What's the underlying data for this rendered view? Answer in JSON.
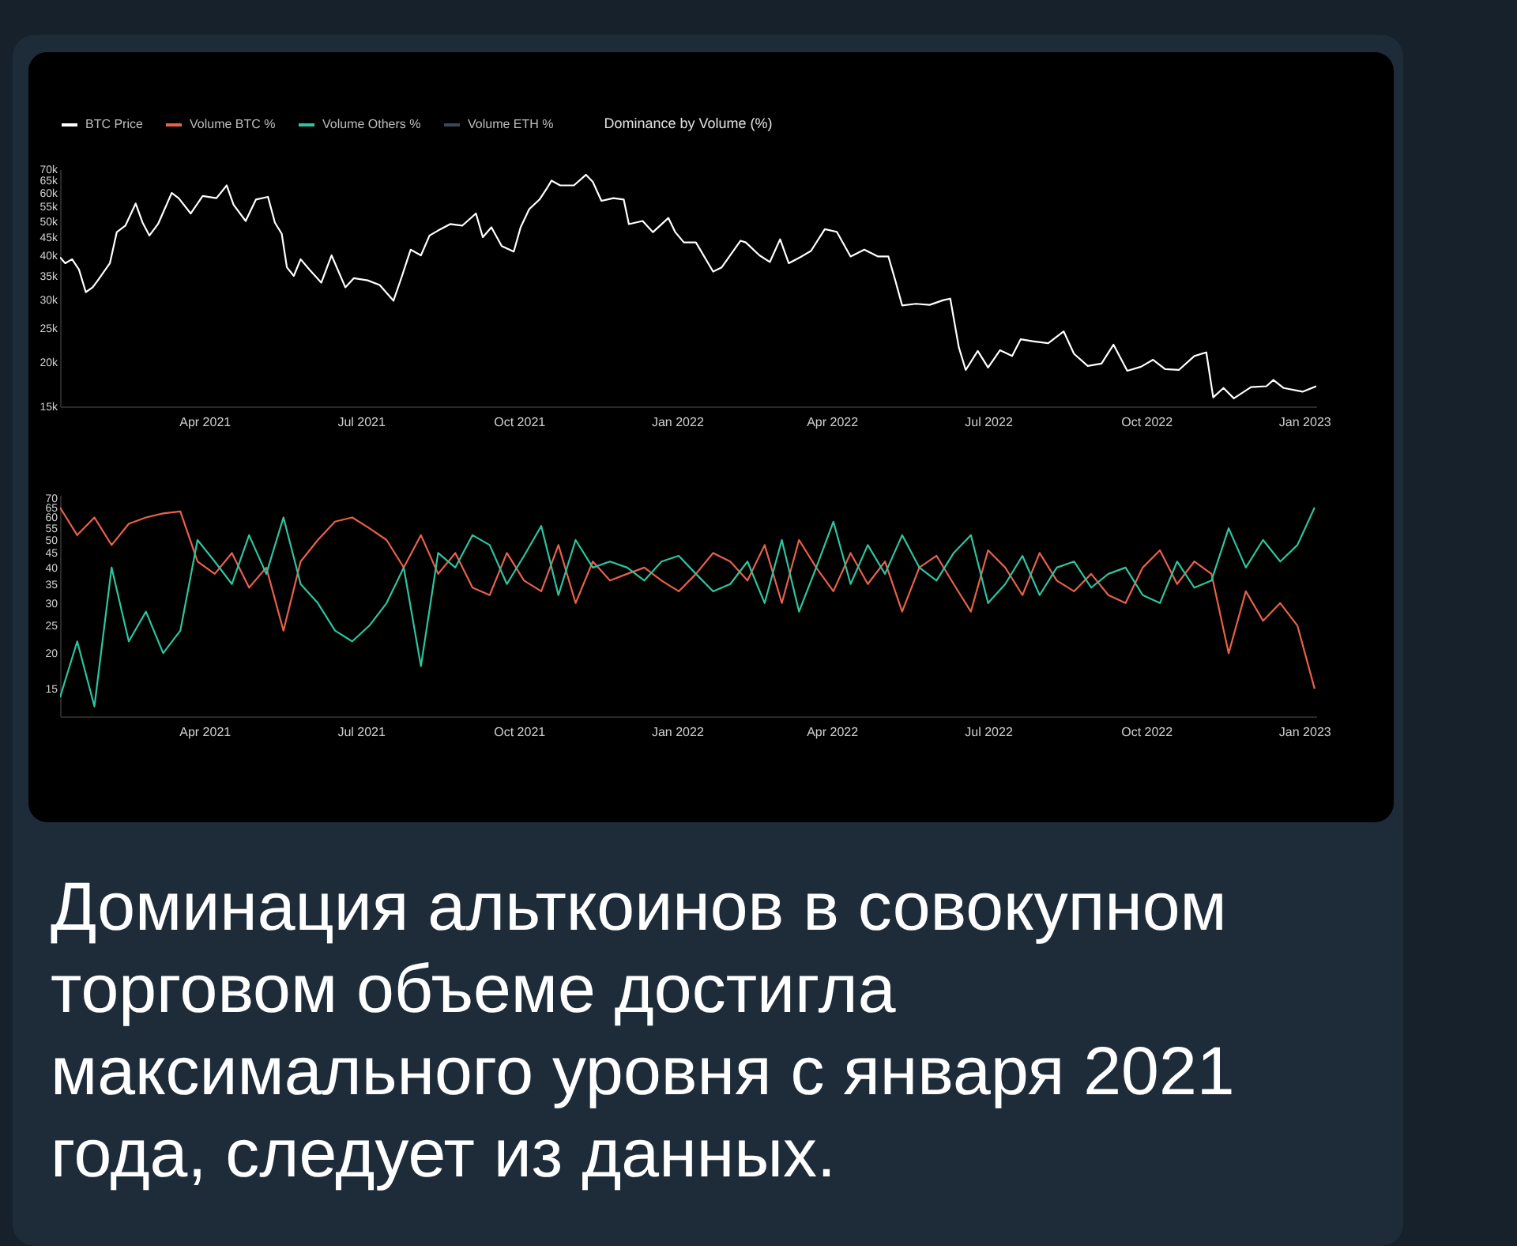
{
  "chart_data": [
    {
      "type": "line",
      "title": "Dominance by Volume (%)",
      "log": "y",
      "legend": "top left",
      "xlim": [
        "2021-01-07",
        "2023-01-08"
      ],
      "xticks": [
        {
          "value": "2021-04-01",
          "label": "Apr 2021"
        },
        {
          "value": "2021-07-01",
          "label": "Jul 2021"
        },
        {
          "value": "2021-10-01",
          "label": "Oct 2021"
        },
        {
          "value": "2022-01-01",
          "label": "Jan 2022"
        },
        {
          "value": "2022-04-01",
          "label": "Apr 2022"
        },
        {
          "value": "2022-07-01",
          "label": "Jul 2022"
        },
        {
          "value": "2022-10-01",
          "label": "Oct 2022"
        },
        {
          "value": "2023-01-01",
          "label": "Jan 2023"
        }
      ],
      "ylim": [
        15000,
        70000
      ],
      "yticks": [
        {
          "value": 15000,
          "label": "15k"
        },
        {
          "value": 20000,
          "label": "20k"
        },
        {
          "value": 25000,
          "label": "25k"
        },
        {
          "value": 30000,
          "label": "30k"
        },
        {
          "value": 35000,
          "label": "35k"
        },
        {
          "value": 40000,
          "label": "40k"
        },
        {
          "value": 45000,
          "label": "45k"
        },
        {
          "value": 50000,
          "label": "50k"
        },
        {
          "value": 55000,
          "label": "55k"
        },
        {
          "value": 60000,
          "label": "60k"
        },
        {
          "value": 65000,
          "label": "65k"
        },
        {
          "value": 70000,
          "label": "70k"
        }
      ],
      "series": [
        {
          "name": "BTC Price",
          "color": "#ffffff",
          "x": [
            "2021-01-07",
            "2021-01-10",
            "2021-01-14",
            "2021-01-18",
            "2021-01-22",
            "2021-01-26",
            "2021-01-29",
            "2021-02-05",
            "2021-02-09",
            "2021-02-14",
            "2021-02-20",
            "2021-02-24",
            "2021-02-28",
            "2021-03-05",
            "2021-03-13",
            "2021-03-17",
            "2021-03-24",
            "2021-03-31",
            "2021-04-08",
            "2021-04-14",
            "2021-04-18",
            "2021-04-25",
            "2021-05-01",
            "2021-05-08",
            "2021-05-12",
            "2021-05-16",
            "2021-05-19",
            "2021-05-23",
            "2021-05-27",
            "2021-06-01",
            "2021-06-08",
            "2021-06-14",
            "2021-06-22",
            "2021-06-27",
            "2021-07-05",
            "2021-07-12",
            "2021-07-20",
            "2021-07-25",
            "2021-07-30",
            "2021-08-05",
            "2021-08-10",
            "2021-08-15",
            "2021-08-22",
            "2021-08-29",
            "2021-09-06",
            "2021-09-10",
            "2021-09-15",
            "2021-09-21",
            "2021-09-28",
            "2021-10-02",
            "2021-10-07",
            "2021-10-13",
            "2021-10-17",
            "2021-10-20",
            "2021-10-25",
            "2021-11-02",
            "2021-11-09",
            "2021-11-13",
            "2021-11-18",
            "2021-11-25",
            "2021-12-01",
            "2021-12-04",
            "2021-12-12",
            "2021-12-18",
            "2021-12-27",
            "2021-12-31",
            "2022-01-05",
            "2022-01-12",
            "2022-01-22",
            "2022-01-27",
            "2022-02-07",
            "2022-02-10",
            "2022-02-18",
            "2022-02-24",
            "2022-03-02",
            "2022-03-07",
            "2022-03-14",
            "2022-03-20",
            "2022-03-28",
            "2022-04-04",
            "2022-04-12",
            "2022-04-20",
            "2022-04-28",
            "2022-05-04",
            "2022-05-08",
            "2022-05-12",
            "2022-05-20",
            "2022-05-28",
            "2022-06-05",
            "2022-06-09",
            "2022-06-14",
            "2022-06-18",
            "2022-06-25",
            "2022-07-01",
            "2022-07-08",
            "2022-07-15",
            "2022-07-20",
            "2022-07-27",
            "2022-08-05",
            "2022-08-14",
            "2022-08-20",
            "2022-08-28",
            "2022-09-05",
            "2022-09-12",
            "2022-09-20",
            "2022-09-28",
            "2022-10-05",
            "2022-10-12",
            "2022-10-20",
            "2022-10-29",
            "2022-11-05",
            "2022-11-09",
            "2022-11-15",
            "2022-11-21",
            "2022-12-01",
            "2022-12-10",
            "2022-12-14",
            "2022-12-20",
            "2022-12-31",
            "2023-01-08"
          ],
          "values": [
            39500,
            38000,
            39000,
            36500,
            31500,
            32500,
            34000,
            38000,
            46500,
            48500,
            56000,
            49500,
            45500,
            49000,
            60000,
            58000,
            52500,
            58800,
            58000,
            63000,
            55500,
            50000,
            57500,
            58500,
            49500,
            46000,
            37000,
            35000,
            39000,
            36500,
            33500,
            40000,
            32500,
            34500,
            34000,
            33000,
            29800,
            35000,
            41500,
            40000,
            45500,
            47000,
            49000,
            48500,
            52500,
            45000,
            48000,
            42500,
            41000,
            48000,
            54000,
            57500,
            61500,
            65000,
            63000,
            63000,
            67500,
            64500,
            57000,
            58000,
            57500,
            49000,
            50000,
            46500,
            51000,
            46500,
            43500,
            43500,
            36000,
            37000,
            44000,
            43500,
            40000,
            38300,
            44400,
            38000,
            39600,
            41200,
            47400,
            46600,
            39700,
            41500,
            39700,
            39700,
            34000,
            28900,
            29200,
            29000,
            29900,
            30200,
            22000,
            19000,
            21500,
            19300,
            21600,
            20800,
            23200,
            22900,
            22600,
            24400,
            21100,
            19500,
            19800,
            22400,
            18900,
            19400,
            20300,
            19100,
            19000,
            20800,
            21300,
            15900,
            16900,
            15800,
            17000,
            17100,
            17800,
            16900,
            16500,
            17100
          ]
        }
      ]
    },
    {
      "type": "line",
      "log": "y",
      "legend": "top left",
      "xlim": [
        "2021-01-07",
        "2023-01-08"
      ],
      "xticks": [
        {
          "value": "2021-04-01",
          "label": "Apr 2021"
        },
        {
          "value": "2021-07-01",
          "label": "Jul 2021"
        },
        {
          "value": "2021-10-01",
          "label": "Oct 2021"
        },
        {
          "value": "2022-01-01",
          "label": "Jan 2022"
        },
        {
          "value": "2022-04-01",
          "label": "Apr 2022"
        },
        {
          "value": "2022-07-01",
          "label": "Jul 2022"
        },
        {
          "value": "2022-10-01",
          "label": "Oct 2022"
        },
        {
          "value": "2023-01-01",
          "label": "Jan 2023"
        }
      ],
      "ylim": [
        12,
        72
      ],
      "yticks": [
        15,
        20,
        25,
        30,
        35,
        40,
        45,
        50,
        55,
        60,
        65,
        70
      ],
      "x": [
        "2021-01-07",
        "2021-01-17",
        "2021-01-27",
        "2021-02-06",
        "2021-02-16",
        "2021-02-26",
        "2021-03-08",
        "2021-03-18",
        "2021-03-28",
        "2021-04-07",
        "2021-04-17",
        "2021-04-27",
        "2021-05-07",
        "2021-05-17",
        "2021-05-27",
        "2021-06-06",
        "2021-06-16",
        "2021-06-26",
        "2021-07-06",
        "2021-07-16",
        "2021-07-26",
        "2021-08-05",
        "2021-08-15",
        "2021-08-25",
        "2021-09-04",
        "2021-09-14",
        "2021-09-24",
        "2021-10-04",
        "2021-10-14",
        "2021-10-24",
        "2021-11-03",
        "2021-11-13",
        "2021-11-23",
        "2021-12-03",
        "2021-12-13",
        "2021-12-23",
        "2022-01-02",
        "2022-01-12",
        "2022-01-22",
        "2022-02-01",
        "2022-02-11",
        "2022-02-21",
        "2022-03-03",
        "2022-03-13",
        "2022-03-23",
        "2022-04-02",
        "2022-04-12",
        "2022-04-22",
        "2022-05-02",
        "2022-05-12",
        "2022-05-22",
        "2022-06-01",
        "2022-06-11",
        "2022-06-21",
        "2022-07-01",
        "2022-07-11",
        "2022-07-21",
        "2022-07-31",
        "2022-08-10",
        "2022-08-20",
        "2022-08-30",
        "2022-09-09",
        "2022-09-19",
        "2022-09-29",
        "2022-10-09",
        "2022-10-19",
        "2022-10-29",
        "2022-11-08",
        "2022-11-18",
        "2022-11-28",
        "2022-12-08",
        "2022-12-18",
        "2022-12-28",
        "2023-01-07"
      ],
      "series": [
        {
          "name": "Volume BTC %",
          "color": "#e8614a",
          "values": [
            65,
            52,
            60,
            48,
            57,
            60,
            62,
            63,
            42,
            38,
            45,
            34,
            40,
            24,
            42,
            50,
            58,
            60,
            55,
            50,
            40,
            52,
            38,
            45,
            34,
            32,
            45,
            36,
            33,
            48,
            30,
            42,
            36,
            38,
            40,
            36,
            33,
            38,
            45,
            42,
            36,
            48,
            30,
            50,
            40,
            33,
            45,
            35,
            42,
            28,
            40,
            44,
            35,
            28,
            46,
            40,
            32,
            45,
            36,
            33,
            38,
            32,
            30,
            40,
            46,
            35,
            42,
            38,
            20,
            33,
            26,
            30,
            25,
            15
          ]
        },
        {
          "name": "Volume Others %",
          "color": "#2ec4a0",
          "values": [
            14,
            22,
            13,
            40,
            22,
            28,
            20,
            24,
            50,
            42,
            35,
            52,
            38,
            60,
            35,
            30,
            24,
            22,
            25,
            30,
            40,
            18,
            45,
            40,
            52,
            48,
            35,
            44,
            56,
            32,
            50,
            40,
            42,
            40,
            36,
            42,
            44,
            38,
            33,
            35,
            42,
            30,
            50,
            28,
            40,
            58,
            35,
            48,
            38,
            52,
            40,
            36,
            45,
            52,
            30,
            35,
            44,
            32,
            40,
            42,
            34,
            38,
            40,
            32,
            30,
            42,
            34,
            36,
            55,
            40,
            50,
            42,
            48,
            65
          ]
        },
        {
          "name": "Volume ETH %",
          "color": "#3c4856",
          "values": [
            null,
            null,
            null,
            null,
            null,
            null,
            null,
            null,
            null,
            null,
            null,
            null,
            null,
            null,
            null,
            null,
            null,
            null,
            null,
            null,
            null,
            null,
            null,
            null,
            null,
            null,
            null,
            null,
            null,
            null,
            null,
            null,
            null,
            null,
            null,
            null,
            null,
            null,
            null,
            null,
            null,
            null,
            null,
            null,
            null,
            null,
            null,
            null,
            null,
            null,
            null,
            null,
            null,
            null,
            null,
            null,
            null,
            null,
            null,
            null,
            null,
            null,
            null,
            null,
            null,
            null,
            null,
            null,
            null,
            null,
            null,
            null,
            null,
            null
          ]
        }
      ],
      "annotations": [
        "Доминация альткоинов в совокупном торговом объеме достигла максимального уровня с января 2021 года, следует из данных."
      ]
    }
  ]
}
